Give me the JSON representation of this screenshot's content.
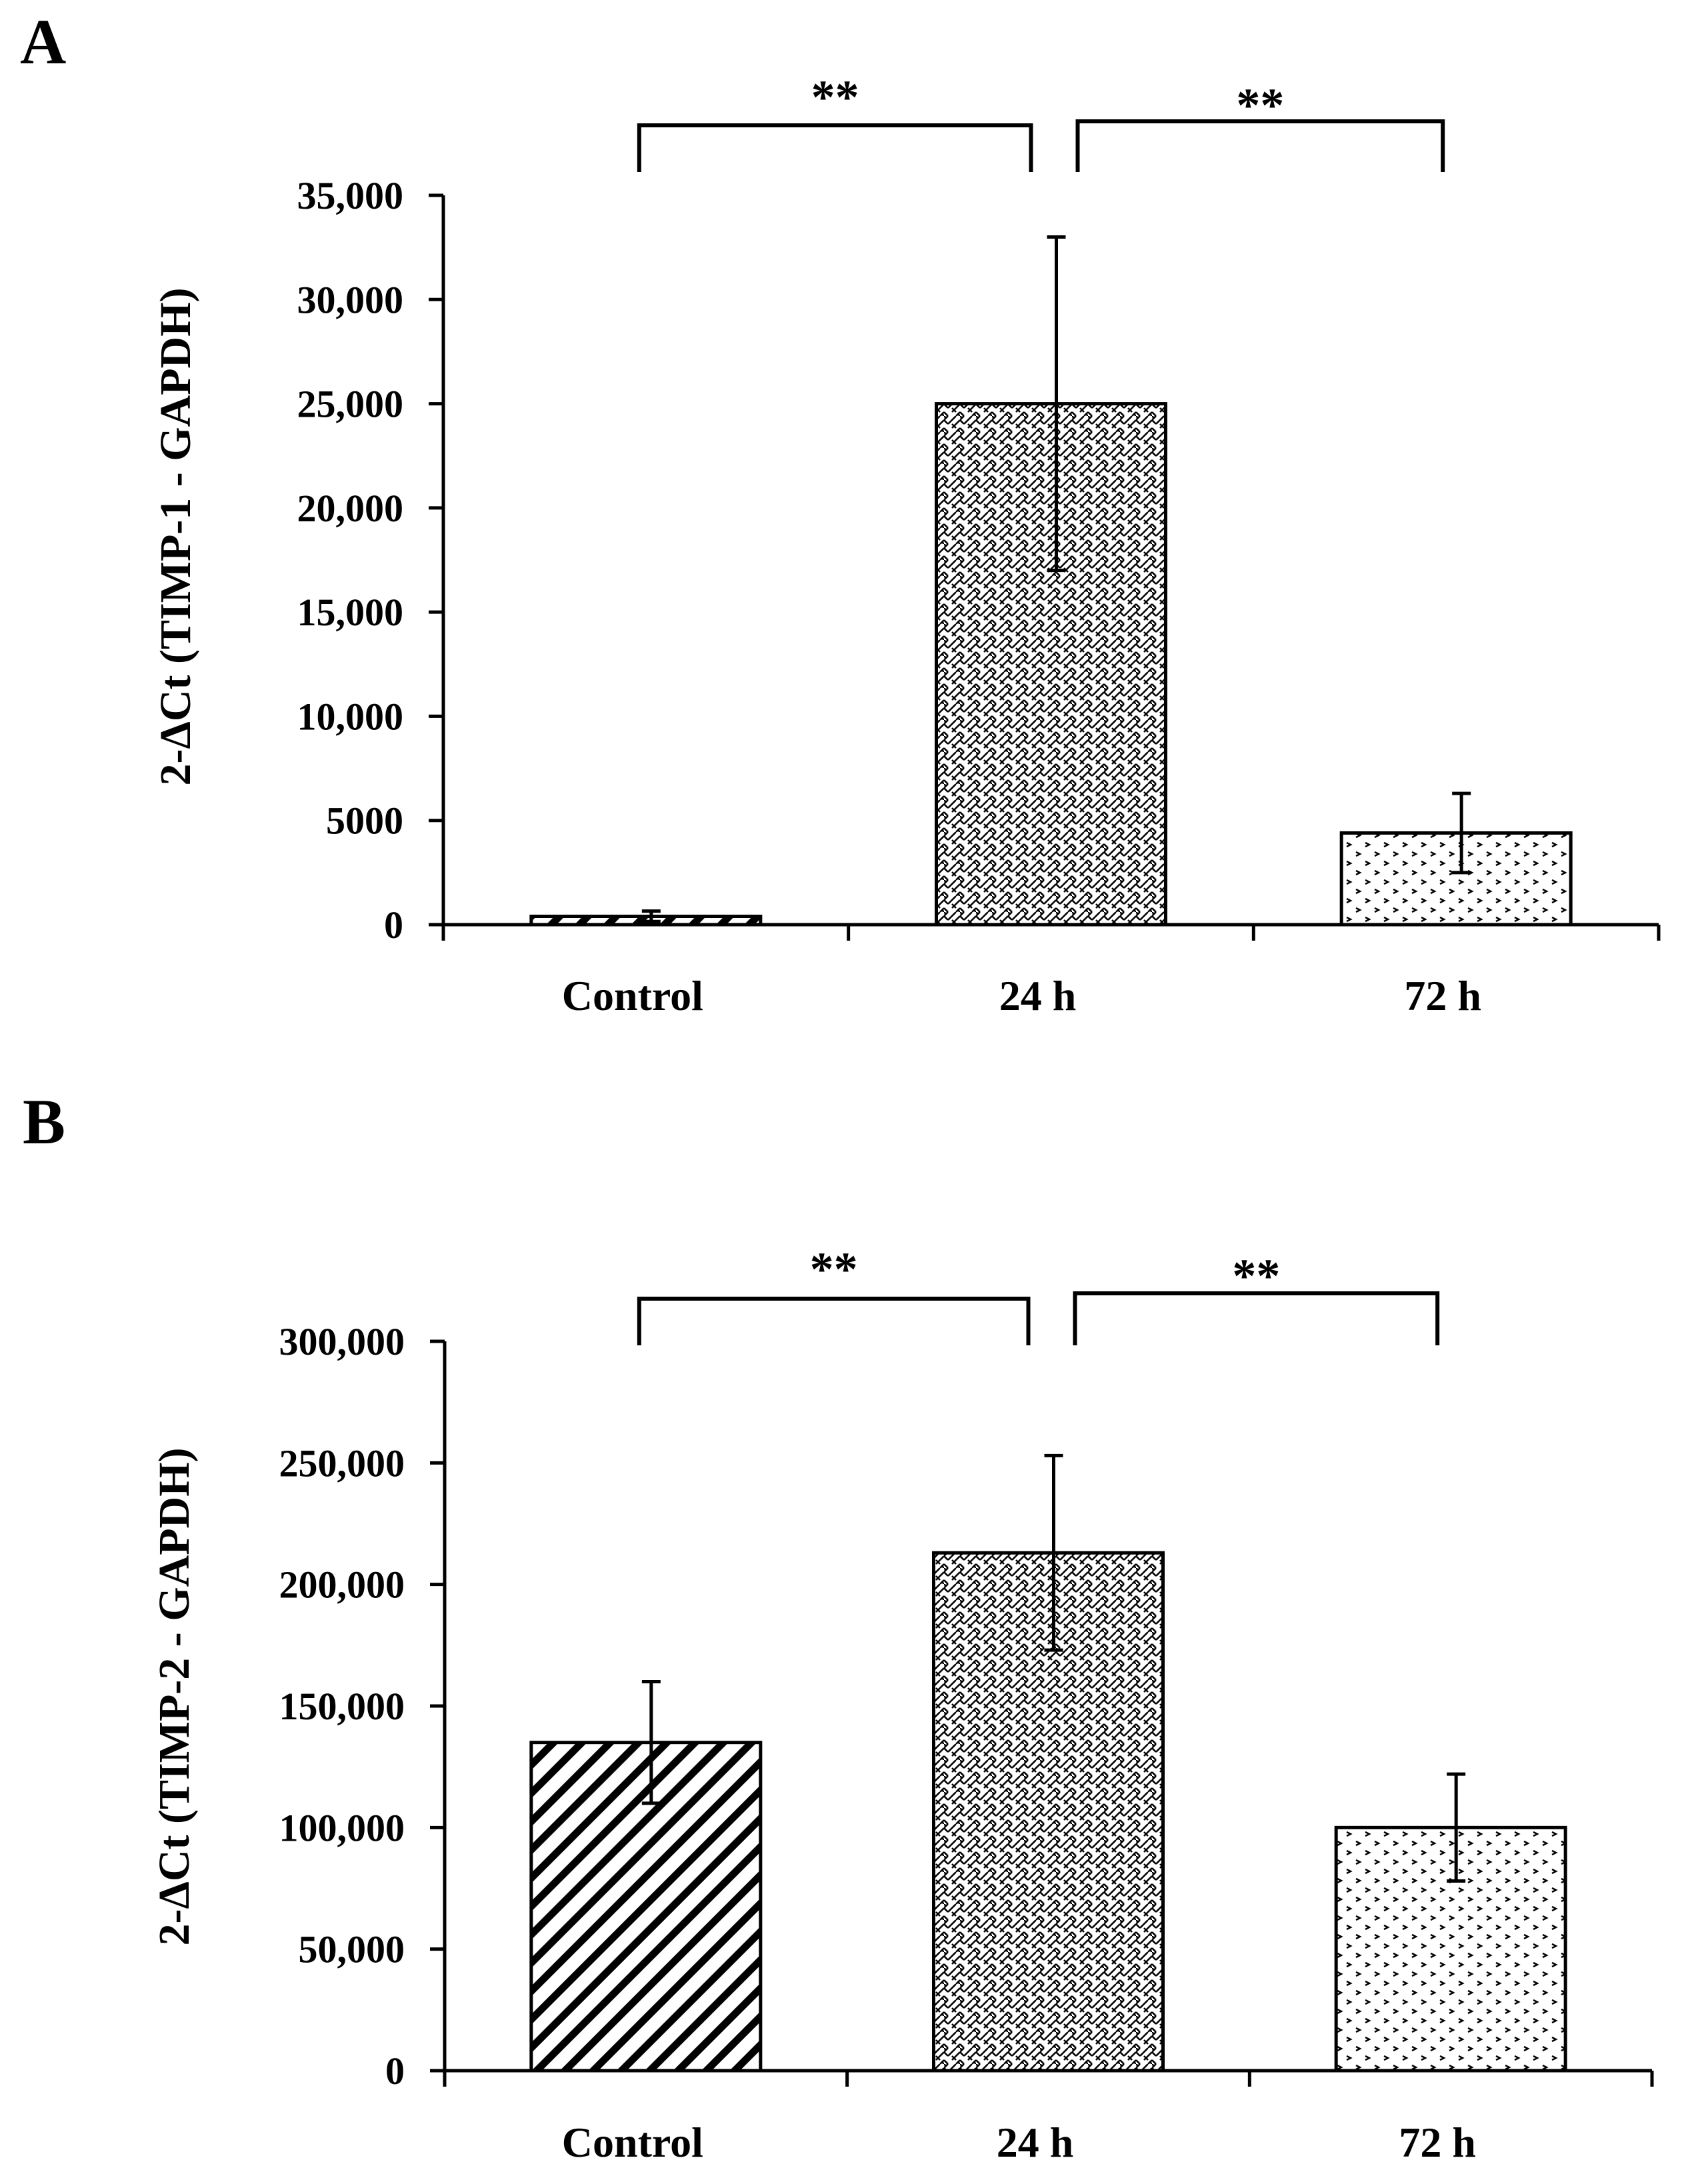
{
  "chart_data": [
    {
      "type": "bar",
      "panel": "A",
      "ylabel": "2-ΔCt (TIMP-1 - GAPDH)",
      "xlabel": "",
      "categories": [
        "Control",
        "24 h",
        "72 h"
      ],
      "values": [
        400,
        25000,
        4400
      ],
      "errors": [
        250,
        8000,
        1900
      ],
      "ylim": [
        0,
        35000
      ],
      "yticks": [
        0,
        5000,
        10000,
        15000,
        20000,
        25000,
        30000,
        35000
      ],
      "ytick_labels": [
        "0",
        "5000",
        "10,000",
        "15,000",
        "20,000",
        "25,000",
        "30,000",
        "35,000"
      ],
      "patterns": [
        "diagonal",
        "weave",
        "dots"
      ],
      "significance": [
        {
          "from": 0,
          "to": 1,
          "label": "**"
        },
        {
          "from": 1,
          "to": 2,
          "label": "**"
        }
      ],
      "grid": false
    },
    {
      "type": "bar",
      "panel": "B",
      "ylabel": "2-ΔCt (TIMP-2 - GAPDH)",
      "xlabel": "",
      "categories": [
        "Control",
        "24 h",
        "72 h"
      ],
      "values": [
        135000,
        213000,
        100000
      ],
      "errors": [
        25000,
        40000,
        22000
      ],
      "ylim": [
        0,
        300000
      ],
      "yticks": [
        0,
        50000,
        100000,
        150000,
        200000,
        250000,
        300000
      ],
      "ytick_labels": [
        "0",
        "50,000",
        "100,000",
        "150,000",
        "200,000",
        "250,000",
        "300,000"
      ],
      "patterns": [
        "diagonal",
        "weave",
        "dots"
      ],
      "significance": [
        {
          "from": 0,
          "to": 1,
          "label": "**"
        },
        {
          "from": 1,
          "to": 2,
          "label": "**"
        }
      ],
      "grid": false
    }
  ]
}
